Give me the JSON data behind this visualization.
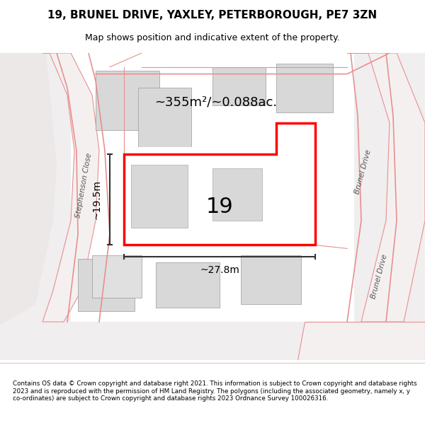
{
  "title_line1": "19, BRUNEL DRIVE, YAXLEY, PETERBOROUGH, PE7 3ZN",
  "title_line2": "Map shows position and indicative extent of the property.",
  "footer_text": "Contains OS data © Crown copyright and database right 2021. This information is subject to Crown copyright and database rights 2023 and is reproduced with the permission of HM Land Registry. The polygons (including the associated geometry, namely x, y co-ordinates) are subject to Crown copyright and database rights 2023 Ordnance Survey 100026316.",
  "area_label": "~355m²/~0.088ac.",
  "property_number": "19",
  "dim_width": "~27.8m",
  "dim_height": "~19.5m",
  "map_bg": "#f5f5f5",
  "plot_bg": "#ffffff",
  "road_color": "#f0c8c8",
  "building_color": "#d8d8d8",
  "highlight_color": "#ff0000",
  "line_color": "#333333",
  "text_color": "#000000",
  "road_line_color": "#e89090"
}
